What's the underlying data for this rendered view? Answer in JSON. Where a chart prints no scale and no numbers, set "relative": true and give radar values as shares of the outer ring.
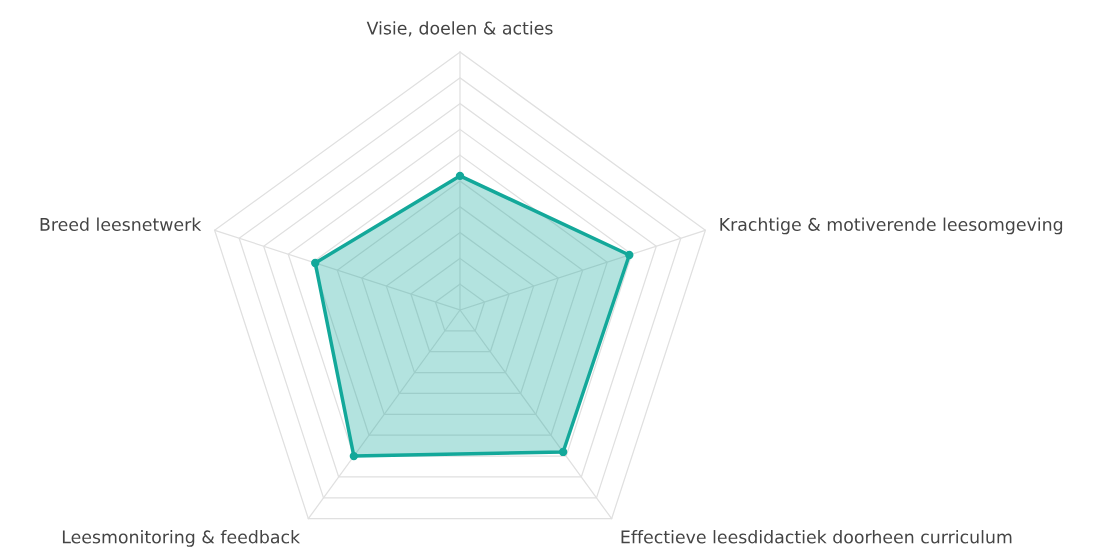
{
  "chart_data": {
    "type": "radar",
    "relative": true,
    "grid": true,
    "marker": "circle",
    "categories": [
      "Visie, doelen & acties",
      "Krachtige & motiverende leesomgeving",
      "Effectieve leesdidactiek doorheen curriculum",
      "Leesmonitoring & feedback",
      "Breed leesnetwerk"
    ],
    "series": [
      {
        "color": "#13a89a",
        "values": [
          0.52,
          0.69,
          0.68,
          0.7,
          0.59
        ]
      }
    ]
  }
}
